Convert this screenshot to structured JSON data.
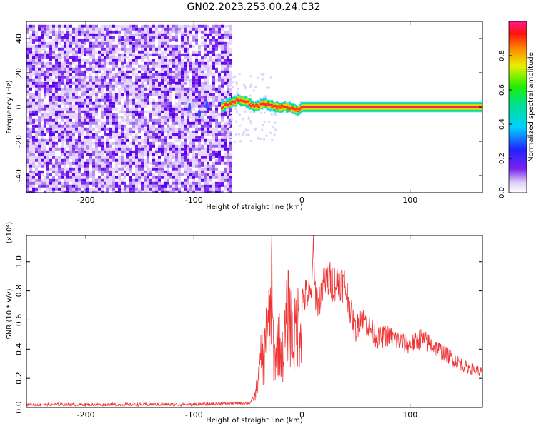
{
  "title": "GN02.2023.253.00.24.C32",
  "colors": {
    "snr_line": "#ee3333",
    "axis": "#000000"
  },
  "colorbar": {
    "label": "Normalized spectral amplitude",
    "ticks": [
      "0.0",
      "0.2",
      "0.4",
      "0.6",
      "0.8"
    ],
    "tick_values": [
      0.0,
      0.2,
      0.4,
      0.6,
      0.8
    ],
    "range": [
      0,
      1
    ],
    "colormap": "rainbow (violet → blue → cyan → green → yellow → orange → red → pink)"
  },
  "chart_data": [
    {
      "type": "heatmap",
      "title": "GN02.2023.253.00.24.C32",
      "xlabel": "Height of straight line (km)",
      "ylabel": "Frequency (Hz)",
      "xlim": [
        -255,
        167
      ],
      "ylim": [
        -50,
        50
      ],
      "x_ticks": [
        -200,
        -100,
        0,
        100
      ],
      "x_tick_labels": [
        "-200",
        "-100",
        "0",
        "100"
      ],
      "y_ticks": [
        -40,
        -20,
        0,
        20,
        40
      ],
      "y_tick_labels": [
        "-40",
        "-20",
        "0",
        "20",
        "40"
      ],
      "regions": [
        {
          "name": "noise",
          "x_range": [
            -255,
            -65
          ],
          "y_range": [
            -50,
            48
          ],
          "amplitude": "low (violet, 0.0–0.2)"
        },
        {
          "name": "signal",
          "x_range": [
            -75,
            167
          ],
          "frequency_hz": 0,
          "bandwidth_hz": 2,
          "amplitude": "high (0.7–1.0)"
        }
      ],
      "signal_path": [
        {
          "x": -75,
          "y": 0
        },
        {
          "x": -60,
          "y": 4
        },
        {
          "x": -52,
          "y": 3
        },
        {
          "x": -45,
          "y": 0
        },
        {
          "x": -35,
          "y": 2
        },
        {
          "x": -25,
          "y": 0
        },
        {
          "x": -15,
          "y": 0
        },
        {
          "x": -5,
          "y": -2
        },
        {
          "x": 0,
          "y": 0
        },
        {
          "x": 167,
          "y": 0
        }
      ]
    },
    {
      "type": "line",
      "xlabel": "Height of straight line (km)",
      "ylabel": "SNR (10 * v/v)",
      "y_multiplier": "(x10⁴)",
      "xlim": [
        -255,
        167
      ],
      "ylim": [
        0,
        1.18
      ],
      "x_ticks": [
        -200,
        -100,
        0,
        100
      ],
      "x_tick_labels": [
        "-200",
        "-100",
        "0",
        "100"
      ],
      "y_ticks": [
        0,
        0.2,
        0.4,
        0.6,
        0.8,
        1.0
      ],
      "y_tick_labels": [
        "0.0",
        "0.2",
        "0.4",
        "0.6",
        "0.8",
        "1.0"
      ],
      "series": [
        {
          "color": "#ee3333",
          "x": [
            -255,
            -200,
            -150,
            -100,
            -60,
            -48,
            -44,
            -40,
            -37,
            -35,
            -33,
            -32,
            -30,
            -28,
            -26,
            -25,
            -22,
            -18,
            -14,
            -12,
            -10,
            -8,
            -5,
            0,
            5,
            9,
            10,
            12,
            15,
            20,
            25,
            30,
            35,
            40,
            45,
            50,
            55,
            60,
            65,
            70,
            80,
            90,
            100,
            110,
            120,
            130,
            140,
            150,
            160,
            167
          ],
          "values": [
            0.02,
            0.02,
            0.02,
            0.02,
            0.03,
            0.03,
            0.08,
            0.25,
            0.5,
            0.35,
            0.88,
            0.6,
            0.75,
            1.07,
            0.4,
            0.45,
            0.6,
            0.45,
            0.75,
            0.85,
            0.7,
            0.55,
            0.72,
            0.78,
            0.82,
            0.78,
            1.2,
            0.85,
            0.75,
            0.88,
            0.92,
            0.9,
            0.92,
            0.88,
            0.7,
            0.55,
            0.68,
            0.6,
            0.55,
            0.5,
            0.52,
            0.48,
            0.45,
            0.5,
            0.45,
            0.4,
            0.35,
            0.3,
            0.27,
            0.25
          ]
        }
      ]
    }
  ]
}
